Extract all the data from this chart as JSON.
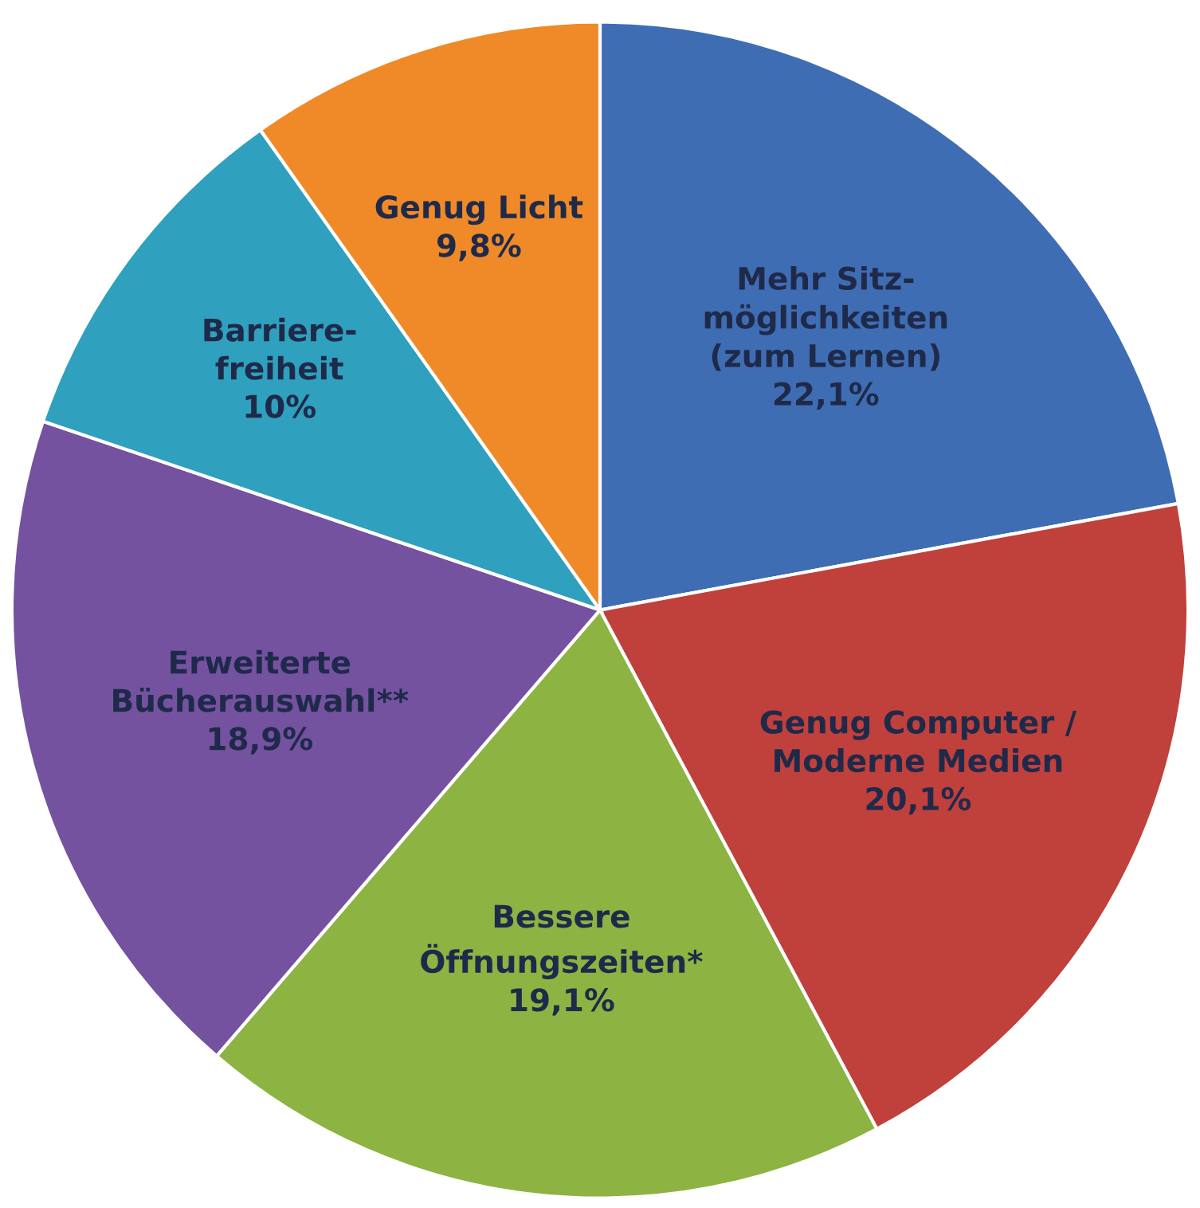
{
  "chart_data": {
    "type": "pie",
    "categories": [
      "Mehr Sitz-\nmöglichkeiten\n(zum Lernen)",
      "Genug Computer /\nModerne Medien",
      "Bessere\nÖffnungszeiten*",
      "Erweiterte\nBücherauswahl**",
      "Barriere-\nfreiheit",
      "Genug Licht"
    ],
    "values": [
      22.1,
      20.1,
      19.1,
      18.9,
      10,
      9.8
    ],
    "value_labels": [
      "22,1%",
      "20,1%",
      "19,1%",
      "18,9%",
      "10%",
      "9,8%"
    ],
    "colors": [
      "#3f6db3",
      "#c0403c",
      "#8db342",
      "#7552a0",
      "#2fa0bd",
      "#f08a28"
    ]
  }
}
